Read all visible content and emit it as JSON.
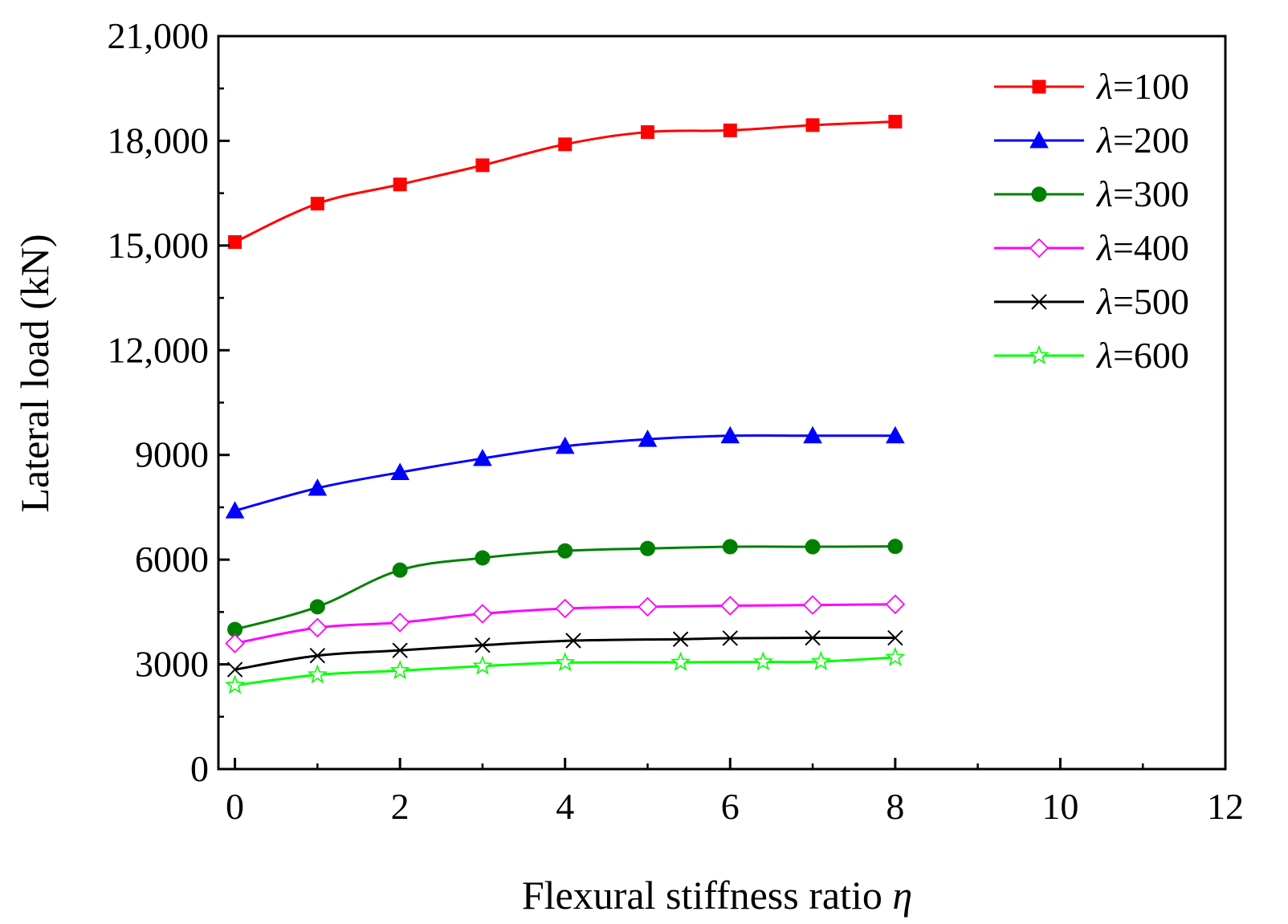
{
  "chart_data": {
    "type": "line",
    "xlabel": "Flexural stiffness ratio",
    "xlabel_symbol": "η",
    "ylabel": "Lateral load (kN)",
    "xlim": [
      -0.2,
      12
    ],
    "ylim": [
      0,
      21000
    ],
    "xticks": [
      0,
      2,
      4,
      6,
      8,
      10,
      12
    ],
    "xtick_labels": [
      "0",
      "2",
      "4",
      "6",
      "8",
      "10",
      "12"
    ],
    "yticks": [
      0,
      3000,
      6000,
      9000,
      12000,
      15000,
      18000,
      21000
    ],
    "ytick_labels": [
      "0",
      "3000",
      "6000",
      "9000",
      "12,000",
      "15,000",
      "18,000",
      "21,000"
    ],
    "legend_position": "top-right",
    "legend_symbol": "λ",
    "series": [
      {
        "name": "=100",
        "color": "#ff0000",
        "marker": "square",
        "filled": true,
        "x": [
          0,
          1,
          2,
          3,
          4,
          5,
          6,
          7,
          8
        ],
        "values": [
          15100,
          16200,
          16750,
          17300,
          17900,
          18250,
          18300,
          18450,
          18550
        ]
      },
      {
        "name": "=200",
        "color": "#0000ff",
        "marker": "triangle",
        "filled": true,
        "x": [
          0,
          1,
          2,
          3,
          4,
          5,
          6,
          7,
          8
        ],
        "values": [
          7400,
          8050,
          8500,
          8900,
          9250,
          9450,
          9550,
          9550,
          9550
        ]
      },
      {
        "name": "=300",
        "color": "#008000",
        "marker": "circle",
        "filled": true,
        "x": [
          0,
          1,
          2,
          3,
          4,
          5,
          6,
          7,
          8
        ],
        "values": [
          4000,
          4650,
          5700,
          6050,
          6250,
          6320,
          6370,
          6370,
          6380
        ]
      },
      {
        "name": "=400",
        "color": "#ff00ff",
        "marker": "diamond",
        "filled": false,
        "x": [
          0,
          1,
          2,
          3,
          4,
          5,
          6,
          7,
          8
        ],
        "values": [
          3600,
          4050,
          4200,
          4450,
          4600,
          4650,
          4680,
          4700,
          4720
        ]
      },
      {
        "name": "=500",
        "color": "#000000",
        "marker": "x",
        "filled": false,
        "x": [
          0,
          1,
          2,
          3,
          4.1,
          5.4,
          6,
          7,
          8
        ],
        "values": [
          2850,
          3250,
          3400,
          3550,
          3680,
          3720,
          3750,
          3760,
          3760
        ]
      },
      {
        "name": "=600",
        "color": "#00ff00",
        "marker": "star",
        "filled": false,
        "x": [
          0,
          1,
          2,
          3,
          4,
          5.4,
          6.4,
          7.1,
          8
        ],
        "values": [
          2400,
          2700,
          2820,
          2950,
          3050,
          3060,
          3070,
          3080,
          3200
        ]
      }
    ]
  }
}
